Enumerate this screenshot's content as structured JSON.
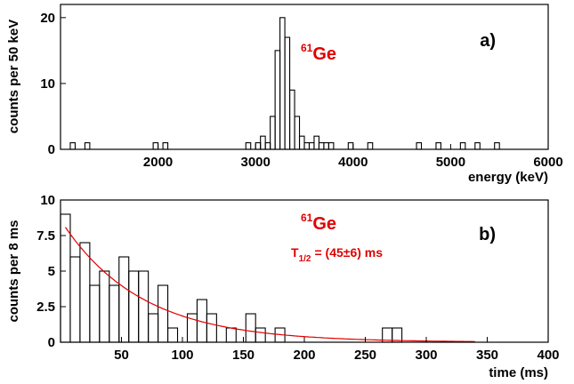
{
  "colors": {
    "hist": "#000000",
    "fit": "#e00000",
    "annotation": "#e00000"
  },
  "chart_data": [
    {
      "type": "histogram",
      "panel_label": "a)",
      "annotation": {
        "mass": "61",
        "element": "Ge"
      },
      "xlabel": "energy (keV)",
      "ylabel": "counts per 50 keV",
      "xlim": [
        1000,
        6000
      ],
      "ylim": [
        0,
        22
      ],
      "xticks": [
        2000,
        3000,
        4000,
        5000,
        6000
      ],
      "yticks": [
        0,
        10,
        20
      ],
      "bin_width": 50,
      "bins": [
        [
          1100,
          1
        ],
        [
          1250,
          1
        ],
        [
          1950,
          1
        ],
        [
          2050,
          1
        ],
        [
          2900,
          1
        ],
        [
          3000,
          1
        ],
        [
          3050,
          2
        ],
        [
          3100,
          1
        ],
        [
          3150,
          5
        ],
        [
          3200,
          15
        ],
        [
          3250,
          20
        ],
        [
          3300,
          17
        ],
        [
          3350,
          9
        ],
        [
          3400,
          5
        ],
        [
          3450,
          2
        ],
        [
          3500,
          1
        ],
        [
          3550,
          1
        ],
        [
          3600,
          2
        ],
        [
          3650,
          1
        ],
        [
          3700,
          1
        ],
        [
          3750,
          1
        ],
        [
          3950,
          1
        ],
        [
          4150,
          1
        ],
        [
          4650,
          1
        ],
        [
          4850,
          1
        ],
        [
          5100,
          1
        ],
        [
          5250,
          1
        ],
        [
          5450,
          1
        ]
      ]
    },
    {
      "type": "histogram",
      "panel_label": "b)",
      "annotation": {
        "mass": "61",
        "element": "Ge"
      },
      "halflife": {
        "prefix": "T",
        "sub": "1/2",
        "text": "= (45±6) ms"
      },
      "xlabel": "time (ms)",
      "ylabel": "counts per 8 ms",
      "xlim": [
        0,
        400
      ],
      "ylim": [
        0,
        10
      ],
      "xticks": [
        50,
        100,
        150,
        200,
        250,
        300,
        350,
        400
      ],
      "yticks": [
        0,
        2.5,
        5,
        7.5,
        10
      ],
      "ytick_labels": [
        "0",
        "2.5",
        "5",
        "7.5",
        "10"
      ],
      "bin_width": 8,
      "counts": [
        9,
        6,
        7,
        4,
        5,
        4,
        6,
        5,
        5,
        2,
        4,
        1,
        0,
        2,
        3,
        2,
        0,
        1,
        0,
        2,
        1,
        0,
        1,
        0,
        0,
        0,
        0,
        0,
        0,
        0,
        0,
        0,
        0,
        1,
        1
      ],
      "fit": {
        "type": "exponential_decay",
        "amplitude": 8.6,
        "half_life_ms": 45,
        "x_range": [
          4,
          340
        ]
      }
    }
  ]
}
